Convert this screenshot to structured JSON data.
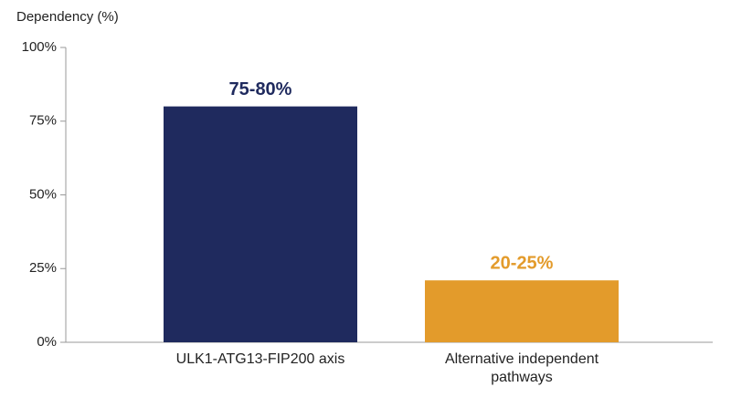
{
  "chart_data": {
    "type": "bar",
    "y_label": "Dependency (%)",
    "categories": [
      "ULK1-ATG13-FIP200 axis",
      "Alternative independent pathways"
    ],
    "values": [
      80,
      21
    ],
    "value_labels": [
      "75-80%",
      "20-25%"
    ],
    "colors": [
      "#1f2a5e",
      "#e39b2b"
    ],
    "ylim": [
      0,
      100
    ],
    "yticks": [
      {
        "value": 0,
        "label": "0%"
      },
      {
        "value": 25,
        "label": "25%"
      },
      {
        "value": 50,
        "label": "50%"
      },
      {
        "value": 75,
        "label": "75%"
      },
      {
        "value": 100,
        "label": "100%"
      }
    ],
    "grid": false
  }
}
